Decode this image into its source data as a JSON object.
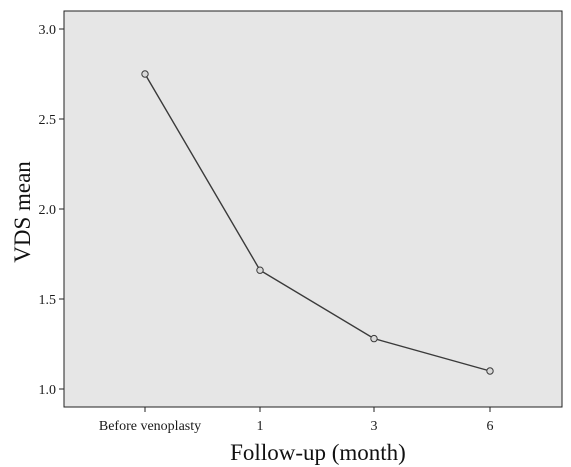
{
  "chart_data": {
    "type": "line",
    "title": "",
    "xlabel": "Follow-up (month)",
    "ylabel": "VDS mean",
    "categories": [
      "Before venoplasty",
      "1",
      "3",
      "6"
    ],
    "series": [
      {
        "values": [
          2.75,
          1.66,
          1.28,
          1.1
        ]
      }
    ],
    "ylim": [
      0.9,
      3.1
    ],
    "yticks": [
      "1.0",
      "1.5",
      "2.0",
      "2.5",
      "3.0"
    ],
    "grid": false,
    "legend": "none",
    "colors": {
      "plot_background": "#e6e6e6",
      "line": "#3a3a3a",
      "marker_fill": "#d9d9d9",
      "axis": "#222222"
    }
  }
}
